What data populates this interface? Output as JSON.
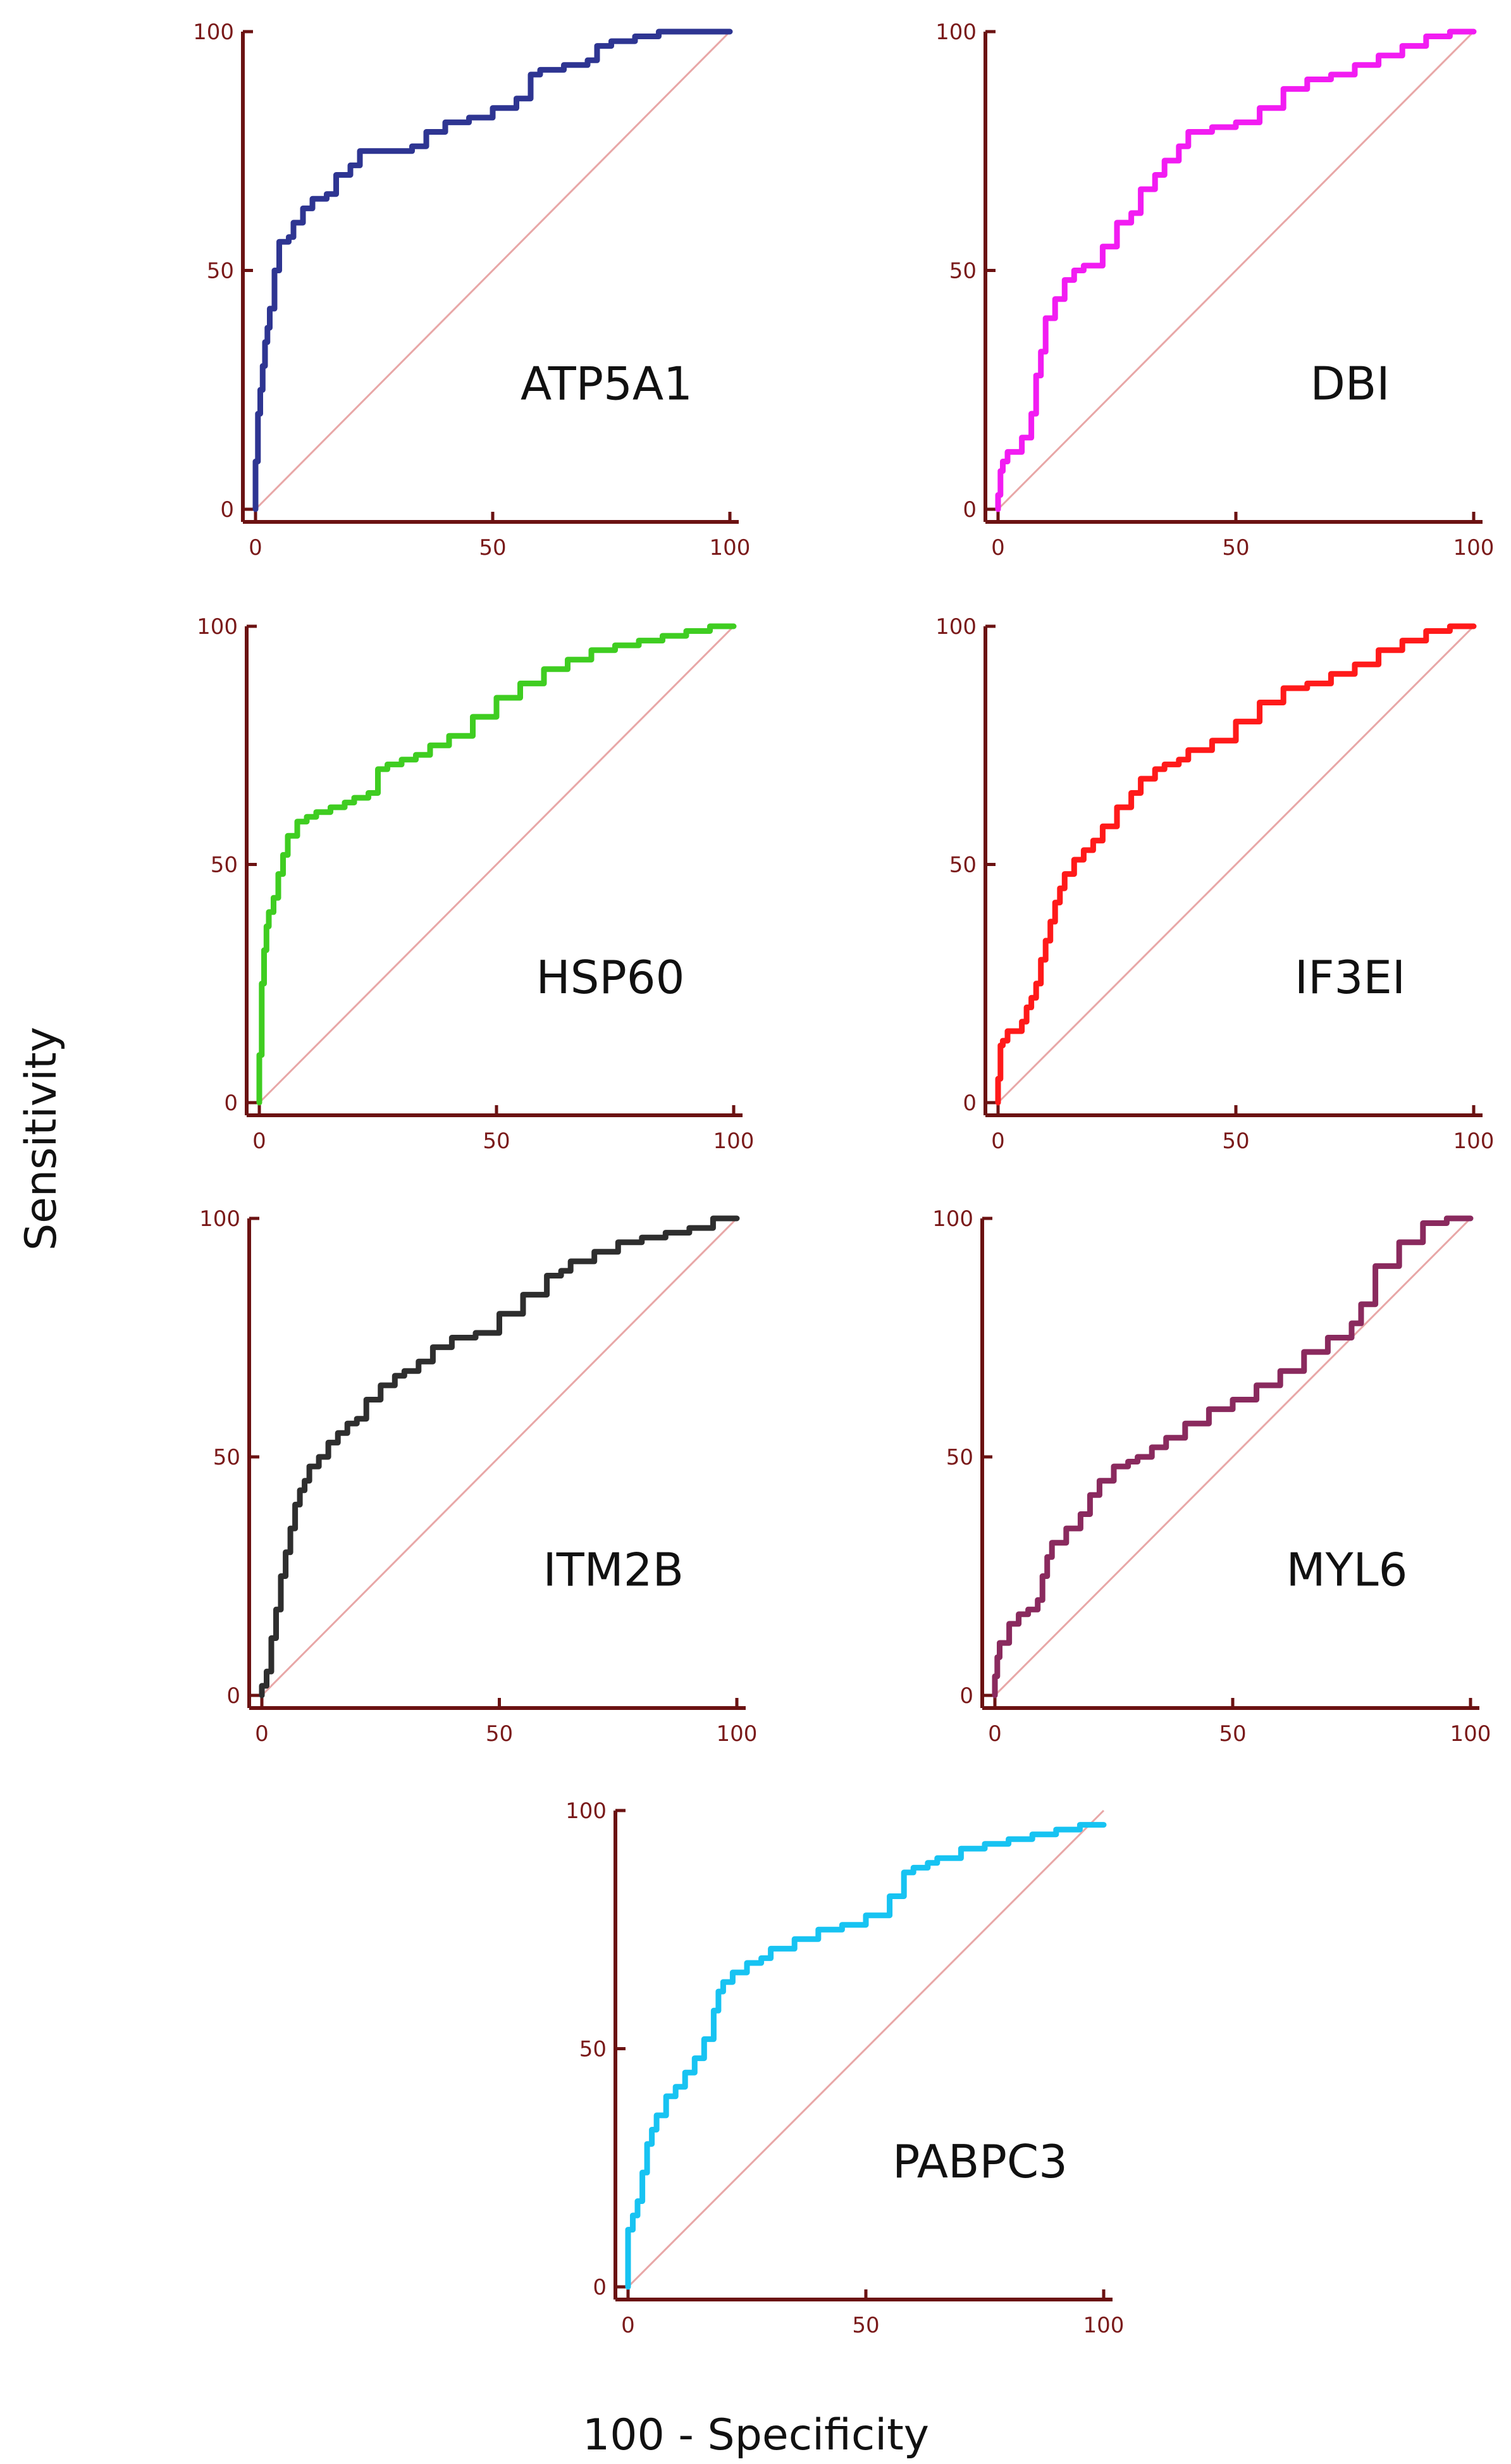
{
  "figure": {
    "ylabel": "Sensitivity",
    "xlabel": "100 - Specificity"
  },
  "colors": {
    "axis": "#6b1212",
    "tick_label": "#7a1a1a",
    "diagonal": "#e8a7a7",
    "ATP5A1": "#2e3592",
    "DBI": "#f21cf2",
    "HSP60": "#3fcd21",
    "IF3EI": "#ff1a1a",
    "ITM2B": "#2e2e2e",
    "MYL6": "#8a2a5e",
    "PABPC3": "#17c3f2"
  },
  "chart_data": [
    {
      "type": "line",
      "label": "ATP5A1",
      "color": "#2e3592",
      "xlim": [
        0,
        100
      ],
      "ylim": [
        0,
        100
      ],
      "xticks": [
        0,
        50,
        100
      ],
      "yticks": [
        0,
        50,
        100
      ],
      "x": [
        0,
        0.5,
        1,
        1.5,
        2,
        2.5,
        3,
        4,
        5,
        6,
        7,
        8,
        10,
        12,
        15,
        17,
        20,
        22,
        25,
        28,
        30,
        33,
        36,
        40,
        45,
        50,
        55,
        58,
        60,
        65,
        68,
        70,
        72,
        75,
        80,
        85,
        90,
        100
      ],
      "y": [
        0,
        10,
        20,
        25,
        30,
        35,
        38,
        42,
        50,
        56,
        56,
        57,
        60,
        63,
        65,
        66,
        70,
        72,
        75,
        75,
        75,
        75,
        76,
        79,
        81,
        82,
        84,
        86,
        91,
        92,
        93,
        93,
        94,
        97,
        98,
        99,
        100,
        100
      ]
    },
    {
      "type": "line",
      "label": "DBI",
      "color": "#f21cf2",
      "xlim": [
        0,
        100
      ],
      "ylim": [
        0,
        100
      ],
      "xticks": [
        0,
        50,
        100
      ],
      "yticks": [
        0,
        50,
        100
      ],
      "x": [
        0,
        0.5,
        1,
        2,
        5,
        7,
        8,
        9,
        10,
        12,
        14,
        16,
        18,
        20,
        22,
        25,
        28,
        30,
        33,
        35,
        38,
        40,
        45,
        50,
        55,
        60,
        65,
        70,
        75,
        80,
        85,
        90,
        95,
        100
      ],
      "y": [
        0,
        3,
        8,
        10,
        12,
        15,
        20,
        28,
        33,
        40,
        44,
        48,
        50,
        51,
        51,
        55,
        60,
        62,
        67,
        70,
        73,
        76,
        79,
        80,
        81,
        84,
        88,
        90,
        91,
        93,
        95,
        97,
        99,
        100
      ]
    },
    {
      "type": "line",
      "label": "HSP60",
      "color": "#3fcd21",
      "xlim": [
        0,
        100
      ],
      "ylim": [
        0,
        100
      ],
      "xticks": [
        0,
        50,
        100
      ],
      "yticks": [
        0,
        50,
        100
      ],
      "x": [
        0,
        0.5,
        1,
        1.5,
        2,
        3,
        4,
        5,
        6,
        8,
        10,
        12,
        15,
        18,
        20,
        23,
        25,
        27,
        30,
        33,
        36,
        40,
        45,
        50,
        55,
        60,
        65,
        70,
        75,
        80,
        85,
        90,
        95,
        100
      ],
      "y": [
        0,
        10,
        25,
        32,
        37,
        40,
        43,
        48,
        52,
        56,
        59,
        60,
        61,
        62,
        63,
        64,
        65,
        70,
        71,
        72,
        73,
        75,
        77,
        81,
        85,
        88,
        91,
        93,
        95,
        96,
        97,
        98,
        99,
        100
      ]
    },
    {
      "type": "line",
      "label": "IF3EI",
      "color": "#ff1a1a",
      "xlim": [
        0,
        100
      ],
      "ylim": [
        0,
        100
      ],
      "xticks": [
        0,
        50,
        100
      ],
      "yticks": [
        0,
        50,
        100
      ],
      "x": [
        0,
        0.5,
        1,
        2,
        5,
        6,
        7,
        8,
        9,
        10,
        11,
        12,
        13,
        14,
        16,
        18,
        20,
        22,
        25,
        28,
        30,
        33,
        35,
        38,
        40,
        45,
        50,
        55,
        60,
        65,
        70,
        75,
        80,
        85,
        90,
        95,
        100
      ],
      "y": [
        0,
        5,
        12,
        13,
        15,
        17,
        20,
        22,
        25,
        30,
        34,
        38,
        42,
        45,
        48,
        51,
        53,
        55,
        58,
        62,
        65,
        68,
        70,
        71,
        72,
        74,
        76,
        80,
        84,
        87,
        88,
        90,
        92,
        95,
        97,
        99,
        100
      ]
    },
    {
      "type": "line",
      "label": "ITM2B",
      "color": "#2e2e2e",
      "xlim": [
        0,
        100
      ],
      "ylim": [
        0,
        100
      ],
      "xticks": [
        0,
        50,
        100
      ],
      "yticks": [
        0,
        50,
        100
      ],
      "x": [
        0,
        1,
        2,
        3,
        4,
        5,
        6,
        7,
        8,
        9,
        10,
        12,
        14,
        16,
        18,
        20,
        22,
        25,
        28,
        30,
        33,
        36,
        40,
        45,
        50,
        55,
        60,
        63,
        65,
        70,
        75,
        80,
        85,
        90,
        95,
        100
      ],
      "y": [
        0,
        2,
        5,
        12,
        18,
        25,
        30,
        35,
        40,
        43,
        45,
        48,
        50,
        53,
        55,
        57,
        58,
        62,
        65,
        67,
        68,
        70,
        73,
        75,
        76,
        80,
        84,
        88,
        89,
        91,
        93,
        95,
        96,
        97,
        98,
        100
      ]
    },
    {
      "type": "line",
      "label": "MYL6",
      "color": "#8a2a5e",
      "xlim": [
        0,
        100
      ],
      "ylim": [
        0,
        100
      ],
      "xticks": [
        0,
        50,
        100
      ],
      "yticks": [
        0,
        50,
        100
      ],
      "x": [
        0,
        0.5,
        1,
        3,
        5,
        7,
        9,
        10,
        11,
        12,
        15,
        18,
        20,
        22,
        25,
        28,
        30,
        33,
        36,
        40,
        45,
        50,
        55,
        60,
        65,
        70,
        75,
        77,
        80,
        85,
        90,
        95,
        100
      ],
      "y": [
        0,
        4,
        8,
        11,
        15,
        17,
        18,
        20,
        25,
        29,
        32,
        35,
        38,
        42,
        45,
        48,
        49,
        50,
        52,
        54,
        57,
        60,
        62,
        65,
        68,
        72,
        75,
        78,
        82,
        90,
        95,
        99,
        100
      ]
    },
    {
      "type": "line",
      "label": "PABPC3",
      "color": "#17c3f2",
      "xlim": [
        0,
        100
      ],
      "ylim": [
        0,
        100
      ],
      "xticks": [
        0,
        50,
        100
      ],
      "yticks": [
        0,
        50,
        100
      ],
      "x": [
        0,
        1,
        2,
        3,
        4,
        5,
        6,
        8,
        10,
        12,
        14,
        16,
        18,
        19,
        20,
        22,
        25,
        28,
        30,
        35,
        40,
        45,
        50,
        55,
        58,
        60,
        63,
        65,
        70,
        75,
        80,
        85,
        90,
        95,
        100
      ],
      "y": [
        0,
        12,
        15,
        18,
        24,
        30,
        33,
        36,
        40,
        42,
        45,
        48,
        52,
        58,
        62,
        64,
        66,
        68,
        69,
        71,
        73,
        75,
        76,
        78,
        82,
        87,
        88,
        89,
        90,
        92,
        93,
        94,
        95,
        96,
        97
      ]
    }
  ]
}
